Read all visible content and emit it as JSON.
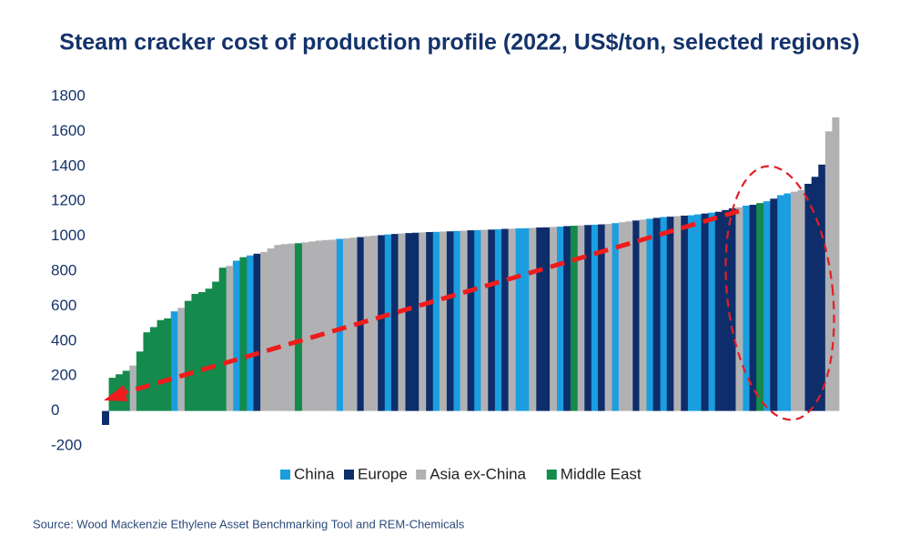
{
  "chart_data": {
    "type": "bar",
    "title": "Steam cracker cost of production profile (2022, US$/ton, selected regions)",
    "source": "Source: Wood Mackenzie Ethylene Asset Benchmarking Tool and REM-Chemicals",
    "ylim": [
      -200,
      1800
    ],
    "yticks": [
      -200,
      0,
      200,
      400,
      600,
      800,
      1000,
      1200,
      1400,
      1600,
      1800
    ],
    "grid": false,
    "legend": "bottom",
    "categories": [
      null,
      null,
      null,
      null,
      null,
      null,
      null,
      null,
      null,
      null,
      null,
      null,
      null,
      null,
      null,
      null,
      null,
      null,
      null,
      null,
      null,
      null,
      null,
      null,
      null,
      null,
      null,
      null,
      null,
      null,
      null,
      null,
      null,
      null,
      null,
      null,
      null,
      null,
      null,
      null,
      null,
      null,
      null,
      null,
      null,
      null,
      null,
      null,
      null,
      null,
      null,
      null,
      null,
      null,
      null,
      null,
      null,
      null,
      null,
      null,
      null,
      null,
      null,
      null,
      null,
      null,
      null,
      null,
      null,
      null,
      null,
      null,
      null,
      null,
      null,
      null,
      null,
      null,
      null,
      null,
      null,
      null,
      null,
      null,
      null,
      null,
      null,
      null,
      null,
      null,
      null,
      null,
      null,
      null,
      null,
      null,
      null,
      null,
      null,
      null,
      null,
      null,
      null,
      null,
      null,
      null,
      null
    ],
    "series": [
      {
        "name": "China",
        "color": "#1a9ee0",
        "values": [
          null,
          null,
          null,
          null,
          null,
          null,
          null,
          null,
          null,
          null,
          570,
          null,
          null,
          null,
          null,
          null,
          null,
          null,
          null,
          860,
          null,
          890,
          null,
          null,
          null,
          null,
          null,
          null,
          null,
          null,
          null,
          null,
          null,
          null,
          985,
          null,
          null,
          null,
          null,
          null,
          null,
          1010,
          null,
          null,
          null,
          null,
          null,
          null,
          1025,
          null,
          null,
          1030,
          null,
          null,
          1035,
          null,
          null,
          1040,
          null,
          null,
          1045,
          1046,
          null,
          null,
          null,
          null,
          1055,
          null,
          null,
          null,
          null,
          1066,
          null,
          null,
          1075,
          null,
          null,
          null,
          null,
          1100,
          null,
          1110,
          null,
          null,
          null,
          1120,
          1125,
          null,
          1135,
          null,
          null,
          null,
          null,
          1175,
          null,
          null,
          1200,
          null,
          1235,
          1245,
          null,
          null,
          null,
          null,
          null,
          null,
          null
        ]
      },
      {
        "name": "Europe",
        "color": "#0e2d6b",
        "values": [
          -80,
          null,
          null,
          null,
          null,
          null,
          null,
          null,
          null,
          null,
          null,
          null,
          null,
          null,
          null,
          null,
          null,
          null,
          null,
          null,
          null,
          null,
          900,
          null,
          null,
          null,
          null,
          null,
          null,
          null,
          null,
          null,
          null,
          null,
          null,
          null,
          null,
          995,
          null,
          null,
          1006,
          null,
          1013,
          null,
          1018,
          1020,
          null,
          1024,
          null,
          null,
          1028,
          null,
          null,
          1034,
          null,
          null,
          1038,
          null,
          1042,
          null,
          null,
          null,
          null,
          1050,
          1051,
          null,
          null,
          1058,
          null,
          null,
          1064,
          null,
          1068,
          null,
          null,
          null,
          null,
          1090,
          null,
          null,
          1105,
          null,
          1112,
          null,
          1118,
          null,
          null,
          1130,
          null,
          1140,
          1150,
          1160,
          null,
          null,
          1180,
          null,
          null,
          1215,
          null,
          null,
          null,
          null,
          1300,
          1340,
          1410,
          null,
          null
        ]
      },
      {
        "name": "Asia ex-China",
        "color": "#b1b1b4",
        "values": [
          null,
          null,
          null,
          null,
          260,
          null,
          null,
          null,
          null,
          null,
          null,
          590,
          null,
          null,
          null,
          null,
          null,
          null,
          830,
          null,
          null,
          null,
          null,
          910,
          930,
          950,
          955,
          958,
          null,
          965,
          970,
          975,
          978,
          980,
          null,
          988,
          992,
          null,
          1000,
          1003,
          null,
          null,
          null,
          1016,
          null,
          null,
          1022,
          null,
          null,
          1027,
          null,
          null,
          1032,
          null,
          null,
          1037,
          null,
          null,
          null,
          1043,
          null,
          null,
          1048,
          null,
          null,
          1053,
          null,
          null,
          null,
          1062,
          null,
          null,
          null,
          1070,
          null,
          1080,
          1085,
          null,
          1095,
          null,
          null,
          null,
          null,
          1115,
          null,
          null,
          null,
          null,
          null,
          null,
          null,
          null,
          1165,
          null,
          null,
          null,
          null,
          null,
          null,
          null,
          1255,
          1265,
          null,
          null,
          null,
          1600,
          1680
        ]
      },
      {
        "name": "Middle East",
        "color": "#148a4c",
        "values": [
          null,
          190,
          210,
          230,
          null,
          340,
          450,
          480,
          520,
          530,
          null,
          null,
          630,
          670,
          680,
          700,
          740,
          820,
          null,
          null,
          880,
          null,
          null,
          null,
          null,
          null,
          null,
          null,
          960,
          null,
          null,
          null,
          null,
          null,
          null,
          null,
          null,
          null,
          null,
          null,
          null,
          null,
          null,
          null,
          null,
          null,
          null,
          null,
          null,
          null,
          null,
          null,
          null,
          null,
          null,
          null,
          null,
          null,
          null,
          null,
          null,
          null,
          null,
          null,
          null,
          null,
          null,
          null,
          1060,
          null,
          null,
          null,
          null,
          null,
          null,
          null,
          null,
          null,
          null,
          null,
          null,
          null,
          null,
          null,
          null,
          null,
          null,
          null,
          null,
          null,
          null,
          null,
          null,
          null,
          null,
          1190,
          null,
          null,
          null,
          null,
          null,
          null,
          null,
          null,
          null,
          null,
          null
        ]
      }
    ]
  }
}
